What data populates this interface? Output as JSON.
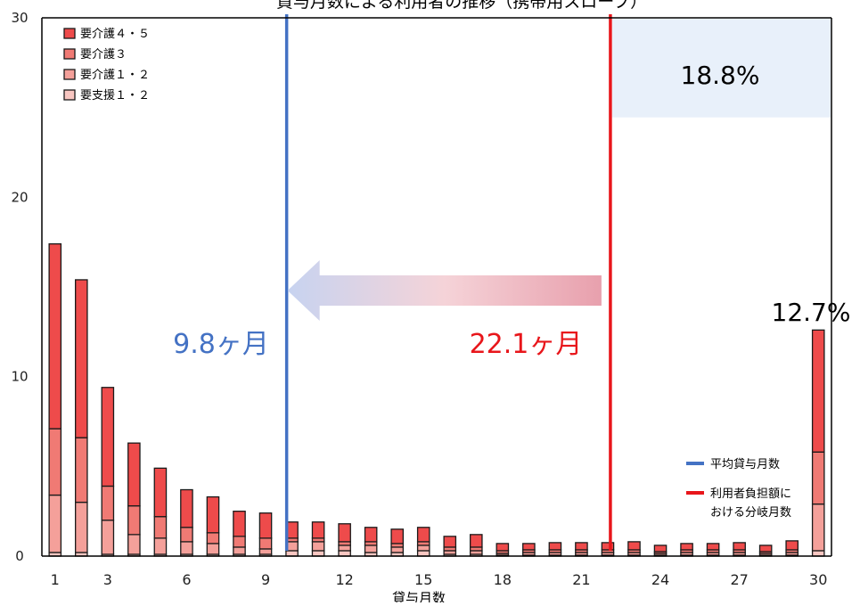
{
  "chart_data": {
    "type": "bar",
    "stacked": true,
    "title": "貸与月数による利用者の推移（携帯用スロープ）",
    "xlabel": "貸与月数",
    "ylabel": "",
    "ylim": [
      0,
      30
    ],
    "yticks": [
      0,
      10,
      20,
      30
    ],
    "xticks": [
      1,
      3,
      6,
      9,
      12,
      15,
      18,
      21,
      24,
      27,
      30
    ],
    "categories": [
      1,
      2,
      3,
      4,
      5,
      6,
      7,
      8,
      9,
      10,
      11,
      12,
      13,
      14,
      15,
      16,
      17,
      18,
      19,
      20,
      21,
      22,
      23,
      24,
      25,
      26,
      27,
      28,
      29,
      30
    ],
    "series": [
      {
        "name": "要支援１・２",
        "color": "#f8c6c1",
        "values": [
          0.2,
          0.2,
          0.1,
          0.1,
          0.1,
          0.1,
          0.1,
          0.1,
          0.1,
          0.3,
          0.3,
          0.3,
          0.2,
          0.2,
          0.3,
          0.1,
          0.1,
          0.05,
          0.05,
          0.05,
          0.05,
          0.05,
          0.05,
          0.05,
          0.05,
          0.05,
          0.05,
          0.05,
          0.05,
          0.3
        ]
      },
      {
        "name": "要介護１・２",
        "color": "#f4a09a",
        "values": [
          3.2,
          2.8,
          1.9,
          1.1,
          0.9,
          0.7,
          0.6,
          0.4,
          0.3,
          0.5,
          0.5,
          0.3,
          0.4,
          0.3,
          0.3,
          0.2,
          0.2,
          0.1,
          0.15,
          0.15,
          0.15,
          0.15,
          0.15,
          0.1,
          0.15,
          0.15,
          0.15,
          0.1,
          0.15,
          2.6
        ]
      },
      {
        "name": "要介護３",
        "color": "#f07a74",
        "values": [
          3.7,
          3.6,
          1.9,
          1.6,
          1.2,
          0.8,
          0.6,
          0.6,
          0.6,
          0.2,
          0.2,
          0.2,
          0.2,
          0.2,
          0.2,
          0.2,
          0.2,
          0.15,
          0.15,
          0.15,
          0.15,
          0.15,
          0.15,
          0.1,
          0.15,
          0.15,
          0.15,
          0.1,
          0.15,
          2.9
        ]
      },
      {
        "name": "要介護４・５",
        "color": "#ee4b4b",
        "values": [
          10.3,
          8.8,
          5.5,
          3.5,
          2.7,
          2.1,
          2.0,
          1.4,
          1.4,
          0.9,
          0.9,
          1.0,
          0.8,
          0.8,
          0.8,
          0.6,
          0.7,
          0.4,
          0.35,
          0.4,
          0.4,
          0.4,
          0.45,
          0.35,
          0.35,
          0.35,
          0.4,
          0.35,
          0.5,
          6.8
        ]
      }
    ],
    "legend": {
      "position": "top-left"
    },
    "grid": false,
    "lines": [
      {
        "name": "平均貸与月数",
        "x": 9.8,
        "color": "#4472c4"
      },
      {
        "name": "利用者負担額における分岐月数",
        "x": 22.1,
        "color": "#e8161b"
      }
    ],
    "line_legend": {
      "position": "bottom-right",
      "items": [
        {
          "label": "平均貸与月数",
          "color": "#4472c4"
        },
        {
          "label": "利用者負担額に",
          "label2": "おける分岐月数",
          "color": "#e8161b"
        }
      ]
    },
    "annotations": {
      "avg_label": "9.8ヶ月",
      "avg_color": "#4472c4",
      "branch_label": "22.1ヶ月",
      "branch_color": "#e8161b",
      "top_right_percent": "18.8%",
      "top_right_bg": "#e8f0fa",
      "last_bar_percent": "12.7%",
      "arrow_from_x": 22.1,
      "arrow_to_x": 9.8,
      "arrow_y": 14.8
    }
  }
}
